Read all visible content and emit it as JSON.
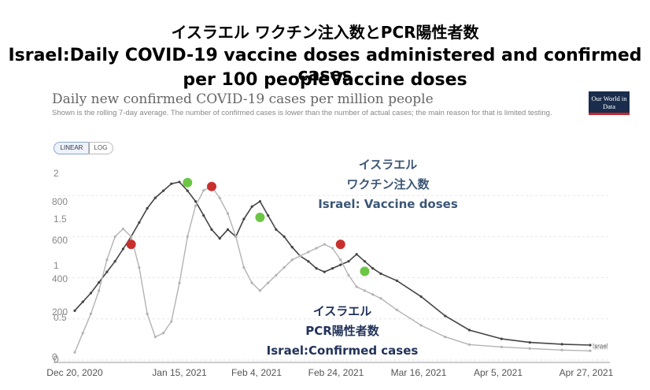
{
  "header": {
    "title_jp": "イスラエル ワクチン注入数とPCR陽性者数",
    "title_en_line1": "Israel:Daily COVID-19 vaccine doses administered and confirmed cases",
    "title_en_line2": "per 100 peopleVaccine doses"
  },
  "inner_chart": {
    "title": "Daily new confirmed COVID-19 cases per million people",
    "subtitle": "Shown is the rolling 7-day average. The number of confirmed cases is lower than the number of actual cases; the main reason for that is limited testing.",
    "logo_text": "Our World in Data",
    "toggle_linear": "LINEAR",
    "toggle_log": "LOG"
  },
  "annotations": {
    "vaccine_jp_1": "イスラエル",
    "vaccine_jp_2": "ワクチン注入数",
    "vaccine_en": "Israel: Vaccine doses",
    "cases_jp_1": "イスラエル",
    "cases_jp_2": "PCR陽性者数",
    "cases_en": "Israel:Confirmed cases"
  },
  "colors": {
    "cases_line": "#444444",
    "vaccine_line": "#b3b3b3",
    "peak_marker": "#c8302e",
    "trough_marker": "#6cc644",
    "label_vaccine": "#3c5676",
    "label_cases": "#22335a"
  },
  "chart_data": {
    "type": "line",
    "x_ticks": [
      "Dec 20, 2020",
      "Jan 15, 2021",
      "Feb 4, 2021",
      "Feb 24, 2021",
      "Mar 16, 2021",
      "Apr 5, 2021",
      "Apr 27, 2021"
    ],
    "y_ticks_cases": [
      "0",
      "200",
      "400",
      "600",
      "800"
    ],
    "y_ticks_vaccine": [
      "0",
      "0.5",
      "1",
      "1.5",
      "2"
    ],
    "series": [
      {
        "name": "Israel",
        "role": "cases per million",
        "x": [
          "2020-12-20",
          "2020-12-22",
          "2020-12-24",
          "2020-12-26",
          "2020-12-28",
          "2020-12-30",
          "2021-01-01",
          "2021-01-03",
          "2021-01-05",
          "2021-01-07",
          "2021-01-09",
          "2021-01-11",
          "2021-01-13",
          "2021-01-15",
          "2021-01-17",
          "2021-01-19",
          "2021-01-21",
          "2021-01-23",
          "2021-01-25",
          "2021-01-27",
          "2021-01-29",
          "2021-01-31",
          "2021-02-02",
          "2021-02-04",
          "2021-02-06",
          "2021-02-08",
          "2021-02-10",
          "2021-02-12",
          "2021-02-14",
          "2021-02-16",
          "2021-02-18",
          "2021-02-20",
          "2021-02-22",
          "2021-02-24",
          "2021-02-26",
          "2021-02-28",
          "2021-03-02",
          "2021-03-04",
          "2021-03-06",
          "2021-03-10",
          "2021-03-16",
          "2021-03-22",
          "2021-03-28",
          "2021-04-05",
          "2021-04-12",
          "2021-04-20",
          "2021-04-27"
        ],
        "y": [
          280,
          330,
          380,
          440,
          500,
          560,
          630,
          700,
          780,
          860,
          920,
          960,
          1000,
          1010,
          960,
          900,
          820,
          740,
          690,
          740,
          700,
          800,
          870,
          900,
          820,
          740,
          700,
          640,
          590,
          560,
          520,
          500,
          520,
          540,
          560,
          600,
          560,
          520,
          490,
          450,
          360,
          250,
          170,
          120,
          100,
          90,
          85
        ]
      },
      {
        "name": "Israel",
        "role": "vaccine doses per 100 people",
        "x": [
          "2020-12-20",
          "2020-12-22",
          "2020-12-24",
          "2020-12-26",
          "2020-12-28",
          "2020-12-30",
          "2021-01-01",
          "2021-01-03",
          "2021-01-05",
          "2021-01-07",
          "2021-01-09",
          "2021-01-11",
          "2021-01-13",
          "2021-01-15",
          "2021-01-17",
          "2021-01-19",
          "2021-01-21",
          "2021-01-23",
          "2021-01-25",
          "2021-01-27",
          "2021-01-29",
          "2021-01-31",
          "2021-02-02",
          "2021-02-04",
          "2021-02-06",
          "2021-02-08",
          "2021-02-10",
          "2021-02-12",
          "2021-02-14",
          "2021-02-16",
          "2021-02-18",
          "2021-02-20",
          "2021-02-22",
          "2021-02-24",
          "2021-02-26",
          "2021-02-28",
          "2021-03-02",
          "2021-03-04",
          "2021-03-06",
          "2021-03-10",
          "2021-03-16",
          "2021-03-22",
          "2021-03-28",
          "2021-04-05",
          "2021-04-12",
          "2021-04-20",
          "2021-04-27"
        ],
        "y": [
          0.1,
          0.35,
          0.6,
          0.9,
          1.3,
          1.6,
          1.7,
          1.6,
          1.2,
          0.6,
          0.3,
          0.35,
          0.5,
          1.0,
          1.6,
          2.0,
          2.2,
          2.25,
          2.1,
          1.9,
          1.6,
          1.2,
          1.0,
          0.9,
          1.0,
          1.1,
          1.2,
          1.3,
          1.35,
          1.4,
          1.45,
          1.5,
          1.45,
          1.3,
          1.1,
          0.95,
          0.9,
          0.85,
          0.8,
          0.65,
          0.45,
          0.3,
          0.2,
          0.17,
          0.15,
          0.13,
          0.12
        ]
      }
    ],
    "markers": {
      "red": [
        [
          "2021-01-03",
          1.5
        ],
        [
          "2021-01-23",
          2.25
        ],
        [
          "2021-02-24",
          1.5
        ]
      ],
      "green": [
        [
          "2021-01-17",
          2.3
        ],
        [
          "2021-02-04",
          1.85
        ],
        [
          "2021-03-02",
          1.15
        ]
      ]
    }
  }
}
